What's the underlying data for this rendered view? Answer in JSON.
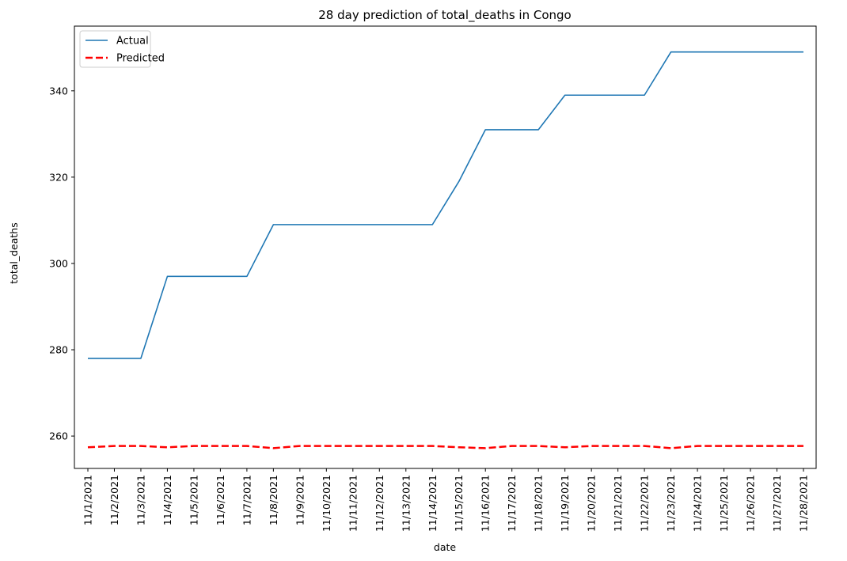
{
  "chart_data": {
    "type": "line",
    "title": "28 day prediction of total_deaths in Congo",
    "xlabel": "date",
    "ylabel": "total_deaths",
    "categories": [
      "11/1/2021",
      "11/2/2021",
      "11/3/2021",
      "11/4/2021",
      "11/5/2021",
      "11/6/2021",
      "11/7/2021",
      "11/8/2021",
      "11/9/2021",
      "11/10/2021",
      "11/11/2021",
      "11/12/2021",
      "11/13/2021",
      "11/14/2021",
      "11/15/2021",
      "11/16/2021",
      "11/17/2021",
      "11/18/2021",
      "11/19/2021",
      "11/20/2021",
      "11/21/2021",
      "11/22/2021",
      "11/23/2021",
      "11/24/2021",
      "11/25/2021",
      "11/26/2021",
      "11/27/2021",
      "11/28/2021"
    ],
    "ylim": [
      252.5,
      355
    ],
    "yticks": [
      260,
      280,
      300,
      320,
      340
    ],
    "grid": false,
    "legend_position": "top-left",
    "series": [
      {
        "name": "Actual",
        "color": "#1f77b4",
        "style": "solid",
        "values": [
          278,
          278,
          278,
          297,
          297,
          297,
          297,
          309,
          309,
          309,
          309,
          309,
          309,
          309,
          319,
          331,
          331,
          331,
          339,
          339,
          339,
          339,
          349,
          349,
          349,
          349,
          349,
          349
        ]
      },
      {
        "name": "Predicted",
        "color": "#ff0000",
        "style": "dashed",
        "values": [
          257.4,
          257.7,
          257.7,
          257.4,
          257.7,
          257.7,
          257.7,
          257.2,
          257.7,
          257.7,
          257.7,
          257.7,
          257.7,
          257.7,
          257.4,
          257.2,
          257.7,
          257.7,
          257.4,
          257.7,
          257.7,
          257.7,
          257.2,
          257.7,
          257.7,
          257.7,
          257.7,
          257.7
        ]
      }
    ]
  }
}
